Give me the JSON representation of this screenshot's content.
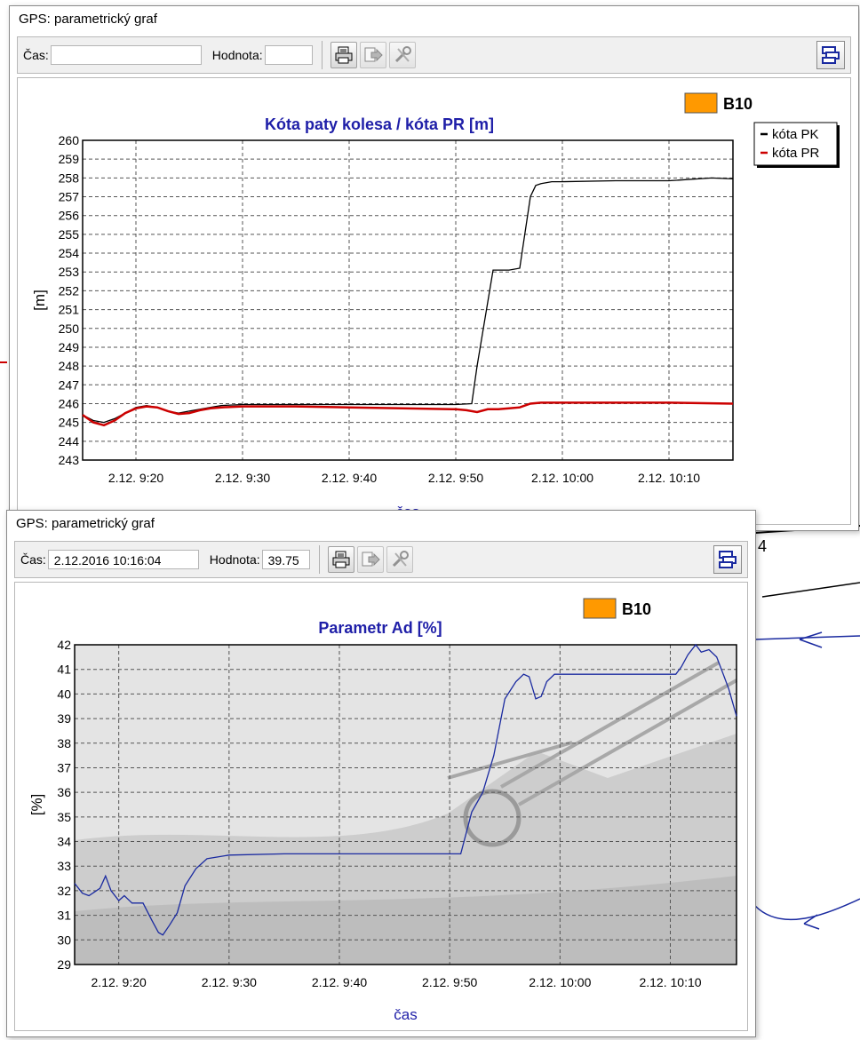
{
  "windows": [
    {
      "title": "GPS: parametrický graf",
      "toolbar": {
        "time_label": "Čas:",
        "time_value": "",
        "value_label": "Hodnota:",
        "value_value": ""
      },
      "badge": {
        "label": "B10",
        "color": "#ff9900"
      }
    },
    {
      "title": "GPS: parametrický graf",
      "toolbar": {
        "time_label": "Čas:",
        "time_value": "2.12.2016 10:16:04",
        "value_label": "Hodnota:",
        "value_value": "39.75"
      },
      "badge": {
        "label": "B10",
        "color": "#ff9900"
      }
    }
  ],
  "background_label": "4",
  "chart_data": [
    {
      "type": "line",
      "title": "Kóta paty kolesa / kóta PR [m]",
      "xlabel": "čas",
      "ylabel": "[m]",
      "ylim": [
        243,
        260
      ],
      "xlim_minutes": [
        555,
        616
      ],
      "x_ticks": [
        "2.12. 9:20",
        "2.12. 9:30",
        "2.12. 9:40",
        "2.12. 9:50",
        "2.12. 10:00",
        "2.12. 10:10"
      ],
      "grid": true,
      "legend": "top-right",
      "series": [
        {
          "name": "kóta PK",
          "color": "#000000",
          "x": [
            555,
            556,
            557,
            558,
            559,
            560,
            561,
            562,
            563,
            564,
            565,
            566,
            567,
            568,
            570,
            575,
            580,
            585,
            590,
            591.5,
            592,
            593.5,
            594,
            595,
            596,
            597,
            597.5,
            598,
            599,
            600,
            605,
            610,
            614,
            616
          ],
          "y": [
            245.4,
            245.1,
            245.0,
            245.2,
            245.5,
            245.8,
            245.9,
            245.8,
            245.6,
            245.5,
            245.6,
            245.7,
            245.8,
            245.9,
            245.95,
            245.95,
            245.95,
            245.95,
            245.95,
            246.0,
            248.0,
            253.1,
            253.1,
            253.1,
            253.2,
            257.0,
            257.6,
            257.7,
            257.8,
            257.8,
            257.85,
            257.85,
            258.0,
            257.95
          ]
        },
        {
          "name": "kóta PR",
          "color": "#cc0000",
          "x": [
            555,
            556,
            557,
            558,
            559,
            560,
            561,
            562,
            563,
            564,
            565,
            566,
            567,
            568,
            570,
            575,
            580,
            585,
            590,
            591,
            592,
            593,
            594,
            595,
            596,
            597,
            598,
            600,
            605,
            610,
            616
          ],
          "y": [
            245.4,
            245.0,
            244.85,
            245.1,
            245.5,
            245.75,
            245.85,
            245.8,
            245.6,
            245.45,
            245.5,
            245.65,
            245.75,
            245.8,
            245.85,
            245.85,
            245.8,
            245.75,
            245.7,
            245.65,
            245.55,
            245.7,
            245.7,
            245.75,
            245.8,
            246.0,
            246.05,
            246.05,
            246.05,
            246.05,
            246.0
          ]
        }
      ]
    },
    {
      "type": "line",
      "title": "Parametr Ad [%]",
      "xlabel": "čas",
      "ylabel": "[%]",
      "ylim": [
        29,
        42
      ],
      "xlim_minutes": [
        556,
        616
      ],
      "x_ticks": [
        "2.12. 9:20",
        "2.12. 9:30",
        "2.12. 9:40",
        "2.12. 9:50",
        "2.12. 10:00",
        "2.12. 10:10"
      ],
      "grid": true,
      "series": [
        {
          "name": "",
          "color": "#1a2aa0",
          "x": [
            556,
            556.7,
            557.3,
            558.3,
            558.8,
            559.3,
            560,
            560.5,
            561.2,
            562.2,
            563,
            563.6,
            564,
            564.6,
            565.3,
            566,
            567,
            568,
            570,
            575,
            580,
            585,
            588,
            589,
            590,
            591,
            592,
            593,
            594,
            595,
            596,
            596.7,
            597.2,
            597.8,
            598.3,
            598.8,
            599.5,
            600,
            601,
            605,
            610,
            610.5,
            611,
            611.6,
            612.3,
            612.8,
            613.5,
            614.2,
            614.8,
            615.3,
            616
          ],
          "y": [
            32.3,
            31.9,
            31.8,
            32.1,
            32.6,
            32.0,
            31.6,
            31.8,
            31.5,
            31.5,
            30.8,
            30.3,
            30.2,
            30.6,
            31.1,
            32.2,
            32.9,
            33.3,
            33.45,
            33.5,
            33.5,
            33.5,
            33.5,
            33.5,
            33.5,
            33.5,
            35.2,
            36.0,
            37.5,
            39.8,
            40.5,
            40.8,
            40.7,
            39.8,
            39.9,
            40.5,
            40.8,
            40.8,
            40.8,
            40.8,
            40.8,
            40.8,
            41.1,
            41.6,
            42.0,
            41.7,
            41.8,
            41.5,
            40.8,
            40.2,
            39.1
          ]
        }
      ]
    }
  ]
}
